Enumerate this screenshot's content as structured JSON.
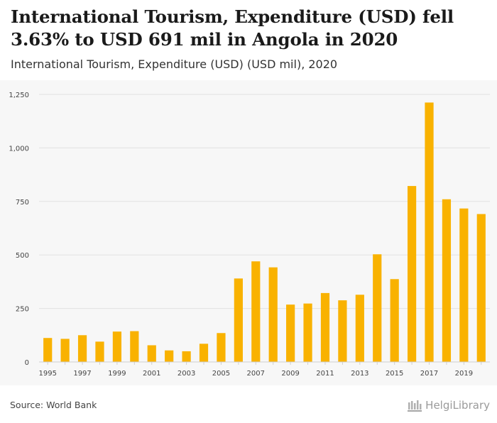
{
  "header": {
    "title": "International Tourism, Expenditure (USD) fell 3.63% to USD 691 mil in Angola in 2020",
    "subtitle": "International Tourism, Expenditure (USD) (USD mil), 2020"
  },
  "footer": {
    "source": "Source: World Bank",
    "logo_text": "HelgiLibrary"
  },
  "colors": {
    "bar": "#f9b200",
    "grid": "#e2e2e2",
    "panel_bg": "#f7f7f7"
  },
  "chart_data": {
    "type": "bar",
    "title": "International Tourism, Expenditure (USD) fell 3.63% to USD 691 mil in Angola in 2020",
    "subtitle": "International Tourism, Expenditure (USD) (USD mil), 2020",
    "xlabel": "",
    "ylabel": "",
    "ylim": [
      0,
      1250
    ],
    "yticks": [
      0,
      250,
      500,
      750,
      1000,
      1250
    ],
    "ytick_labels": [
      "0",
      "250",
      "500",
      "750",
      "1,000",
      "1,250"
    ],
    "categories": [
      "1995",
      "1996",
      "1997",
      "1998",
      "1999",
      "2000",
      "2001",
      "2002",
      "2003",
      "2004",
      "2005",
      "2006",
      "2007",
      "2008",
      "2009",
      "2010",
      "2011",
      "2012",
      "2013",
      "2014",
      "2015",
      "2016",
      "2017",
      "2018",
      "2019",
      "2020"
    ],
    "xtick_labels": [
      "1995",
      "",
      "1997",
      "",
      "1999",
      "",
      "2001",
      "",
      "2003",
      "",
      "2005",
      "",
      "2007",
      "",
      "2009",
      "",
      "2011",
      "",
      "2013",
      "",
      "2015",
      "",
      "2017",
      "",
      "2019",
      ""
    ],
    "values": [
      112,
      108,
      125,
      95,
      142,
      144,
      78,
      54,
      50,
      85,
      135,
      390,
      470,
      442,
      268,
      273,
      322,
      288,
      314,
      503,
      387,
      822,
      1212,
      760,
      717,
      691
    ],
    "grid": true,
    "legend": "none"
  }
}
